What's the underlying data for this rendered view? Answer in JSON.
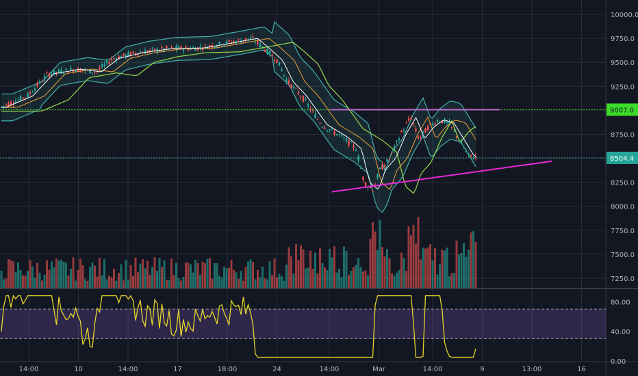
{
  "chart_data": {
    "type": "candlestick",
    "price": {
      "yticks": [
        "10000.0",
        "9750.0",
        "9500.0",
        "9250.0",
        "9000.0",
        "8750.0",
        "8500.0",
        "8250.0",
        "8000.0",
        "7750.0",
        "7500.0",
        "7250.0"
      ],
      "ylim": [
        7150,
        10150
      ],
      "resistance_level": 9007.0,
      "resistance_label": "9007.0",
      "last_price": 8504.4,
      "last_price_label": "8504.4",
      "support_trendline": {
        "x": [
          0.52,
          0.865
        ],
        "y": [
          8150,
          8470
        ]
      },
      "resistance_line": {
        "x": [
          0.545,
          0.825
        ],
        "y": [
          9007,
          9007
        ]
      }
    },
    "rsi": {
      "yticks": [
        "80.00",
        "40.00",
        "0.00"
      ],
      "ylim": [
        0,
        95
      ],
      "upper_band": 70,
      "lower_band": 30
    },
    "xticks": [
      "14:00",
      "10",
      "14:00",
      "17",
      "18:00",
      "24",
      "14:00",
      "Mar",
      "14:00",
      "9",
      "13:00",
      "16"
    ],
    "colors": {
      "background": "#131722",
      "up": "#26a69a",
      "down": "#ef5350",
      "rsi_line": "#e6d52a",
      "trendline": "#e62ad6",
      "resistance": "#c266c8",
      "level_line": "#3cdc28",
      "bb": "#3fa7a3",
      "sma_fast": "#ffffff",
      "sma_mid": "#f0a23a",
      "sma_slow": "#8fd04a"
    }
  }
}
